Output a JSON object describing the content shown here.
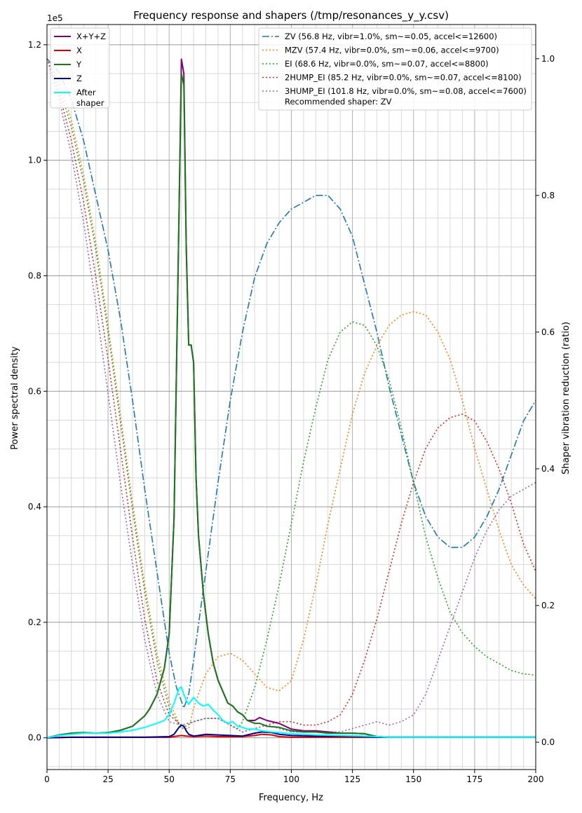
{
  "chart_data": {
    "type": "line",
    "title": "Frequency response and shapers (/tmp/resonances_y_y.csv)",
    "xlabel": "Frequency, Hz",
    "ylabel": "Power spectral density",
    "y2label": "Shaper vibration reduction (ratio)",
    "y_offset_label": "1e5",
    "xlim": [
      0,
      200
    ],
    "ylim": [
      -0.055,
      1.235
    ],
    "y2lim": [
      -0.04,
      1.05
    ],
    "x_ticks": [
      0,
      25,
      50,
      75,
      100,
      125,
      150,
      175,
      200
    ],
    "x_tick_labels": [
      "0",
      "25",
      "50",
      "75",
      "100",
      "125",
      "150",
      "175",
      "200"
    ],
    "y_ticks": [
      0.0,
      0.2,
      0.4,
      0.6,
      0.8,
      1.0,
      1.2
    ],
    "y_tick_labels": [
      "0.0",
      "0.2",
      "0.4",
      "0.6",
      "0.8",
      "1.0",
      "1.2"
    ],
    "y2_ticks": [
      0.0,
      0.2,
      0.4,
      0.6,
      0.8,
      1.0
    ],
    "y2_tick_labels": [
      "0.0",
      "0.2",
      "0.4",
      "0.6",
      "0.8",
      "1.0"
    ],
    "grid": "major and minor",
    "legend_left": "top-left",
    "legend_right": "top-right",
    "recommended_text": "Recommended shaper: ZV",
    "psd_series": [
      {
        "name": "X+Y+Z",
        "color": "#800080",
        "dash": "",
        "x": [
          0,
          5,
          10,
          15,
          20,
          25,
          30,
          35,
          40,
          42,
          45,
          48,
          50,
          52,
          54,
          55,
          56,
          57,
          58,
          59,
          60,
          61,
          62,
          64,
          66,
          68,
          70,
          72,
          74,
          76,
          78,
          80,
          82,
          85,
          87,
          90,
          95,
          100,
          105,
          110,
          115,
          120,
          125,
          130,
          132,
          135,
          140,
          150,
          160,
          170,
          180,
          190,
          200
        ],
        "y": [
          0,
          0.005,
          0.008,
          0.009,
          0.008,
          0.009,
          0.013,
          0.02,
          0.038,
          0.05,
          0.075,
          0.12,
          0.18,
          0.38,
          0.9,
          1.175,
          1.15,
          0.85,
          0.68,
          0.68,
          0.65,
          0.45,
          0.35,
          0.25,
          0.18,
          0.13,
          0.1,
          0.08,
          0.06,
          0.055,
          0.045,
          0.04,
          0.03,
          0.03,
          0.035,
          0.03,
          0.025,
          0.015,
          0.012,
          0.012,
          0.01,
          0.008,
          0.008,
          0.007,
          0.005,
          0.002,
          0.001,
          0.001,
          0.001,
          0.001,
          0.001,
          0.001,
          0.001
        ]
      },
      {
        "name": "X",
        "color": "#dd0000",
        "dash": "",
        "x": [
          0,
          10,
          20,
          30,
          40,
          50,
          55,
          57,
          60,
          65,
          70,
          75,
          80,
          85,
          88,
          92,
          95,
          100,
          120,
          140,
          160,
          180,
          200
        ],
        "y": [
          0,
          0.001,
          0.001,
          0.001,
          0.001,
          0.001,
          0.004,
          0.003,
          0.002,
          0.003,
          0.002,
          0.002,
          0.002,
          0.004,
          0.006,
          0.005,
          0.002,
          0.001,
          0.001,
          0.001,
          0.001,
          0.001,
          0.001
        ]
      },
      {
        "name": "Y",
        "color": "#1a7a1a",
        "dash": "",
        "x": [
          0,
          5,
          10,
          15,
          20,
          25,
          30,
          35,
          40,
          42,
          45,
          48,
          50,
          52,
          54,
          55,
          56,
          57,
          58,
          59,
          60,
          61,
          62,
          64,
          66,
          68,
          70,
          72,
          74,
          76,
          78,
          80,
          82,
          85,
          87,
          90,
          95,
          100,
          105,
          110,
          115,
          120,
          125,
          130,
          132,
          135,
          140,
          150,
          160,
          170,
          180,
          190,
          200
        ],
        "y": [
          0,
          0.005,
          0.008,
          0.009,
          0.008,
          0.009,
          0.013,
          0.02,
          0.038,
          0.05,
          0.075,
          0.12,
          0.18,
          0.38,
          0.9,
          1.15,
          1.13,
          0.85,
          0.68,
          0.68,
          0.65,
          0.45,
          0.35,
          0.25,
          0.18,
          0.13,
          0.1,
          0.08,
          0.06,
          0.055,
          0.045,
          0.04,
          0.03,
          0.025,
          0.025,
          0.02,
          0.018,
          0.012,
          0.01,
          0.01,
          0.008,
          0.008,
          0.008,
          0.007,
          0.005,
          0.002,
          0.001,
          0.001,
          0.001,
          0.001,
          0.001,
          0.001,
          0.001
        ]
      },
      {
        "name": "Z",
        "color": "#00008b",
        "dash": "",
        "x": [
          0,
          10,
          20,
          30,
          40,
          50,
          52,
          54,
          55,
          56,
          57,
          58,
          60,
          62,
          65,
          70,
          75,
          80,
          85,
          88,
          92,
          95,
          100,
          110,
          120,
          130,
          135,
          140,
          160,
          180,
          200
        ],
        "y": [
          0,
          0.001,
          0.001,
          0.001,
          0.001,
          0.002,
          0.006,
          0.018,
          0.022,
          0.02,
          0.012,
          0.006,
          0.003,
          0.004,
          0.006,
          0.005,
          0.004,
          0.003,
          0.008,
          0.01,
          0.009,
          0.006,
          0.004,
          0.003,
          0.003,
          0.002,
          0.001,
          0.001,
          0.001,
          0.001,
          0.001
        ]
      },
      {
        "name": "After\nshaper",
        "color": "#00ffff",
        "dash": "",
        "x": [
          0,
          5,
          10,
          15,
          20,
          25,
          30,
          35,
          40,
          45,
          48,
          50,
          52,
          54,
          55,
          56,
          57,
          58,
          60,
          62,
          64,
          66,
          68,
          70,
          72,
          74,
          76,
          78,
          80,
          82,
          85,
          88,
          92,
          95,
          100,
          110,
          120,
          130,
          135,
          140,
          160,
          180,
          200
        ],
        "y": [
          0,
          0.004,
          0.006,
          0.008,
          0.008,
          0.008,
          0.01,
          0.013,
          0.018,
          0.025,
          0.03,
          0.04,
          0.06,
          0.085,
          0.088,
          0.075,
          0.065,
          0.058,
          0.07,
          0.06,
          0.055,
          0.058,
          0.048,
          0.04,
          0.03,
          0.025,
          0.028,
          0.02,
          0.018,
          0.015,
          0.015,
          0.012,
          0.01,
          0.009,
          0.007,
          0.005,
          0.004,
          0.003,
          0.002,
          0.001,
          0.001,
          0.001,
          0.001
        ]
      }
    ],
    "shaper_series": [
      {
        "name": "ZV (56.8 Hz, vibr=1.0%, sm~=0.05, accel<=12600)",
        "color": "#1f77b4",
        "dash": "10,3,2,3",
        "x": [
          0,
          5,
          10,
          15,
          20,
          25,
          30,
          35,
          40,
          45,
          50,
          53,
          56,
          58,
          60,
          65,
          70,
          75,
          80,
          85,
          90,
          95,
          100,
          105,
          110,
          115,
          120,
          125,
          130,
          135,
          140,
          145,
          150,
          155,
          160,
          165,
          170,
          175,
          180,
          185,
          190,
          195,
          200
        ],
        "y": [
          1.0,
          0.98,
          0.94,
          0.88,
          0.8,
          0.72,
          0.62,
          0.5,
          0.37,
          0.25,
          0.13,
          0.08,
          0.05,
          0.07,
          0.12,
          0.25,
          0.38,
          0.5,
          0.6,
          0.68,
          0.73,
          0.76,
          0.78,
          0.79,
          0.8,
          0.8,
          0.78,
          0.74,
          0.67,
          0.6,
          0.52,
          0.45,
          0.38,
          0.33,
          0.3,
          0.285,
          0.285,
          0.3,
          0.33,
          0.37,
          0.42,
          0.47,
          0.5
        ]
      },
      {
        "name": "MZV (57.4 Hz, vibr=0.0%, sm~=0.06, accel<=9700)",
        "color": "#ff7f0e",
        "dash": "2,3",
        "x": [
          0,
          5,
          10,
          15,
          20,
          25,
          30,
          35,
          40,
          45,
          50,
          55,
          58,
          60,
          65,
          70,
          75,
          80,
          85,
          90,
          95,
          100,
          105,
          110,
          115,
          120,
          125,
          130,
          135,
          140,
          145,
          150,
          155,
          160,
          165,
          170,
          175,
          180,
          185,
          190,
          195,
          200
        ],
        "y": [
          1.0,
          0.97,
          0.91,
          0.83,
          0.73,
          0.61,
          0.48,
          0.35,
          0.23,
          0.13,
          0.06,
          0.02,
          0.02,
          0.05,
          0.1,
          0.125,
          0.13,
          0.12,
          0.1,
          0.08,
          0.075,
          0.09,
          0.15,
          0.23,
          0.32,
          0.4,
          0.48,
          0.54,
          0.58,
          0.61,
          0.625,
          0.63,
          0.625,
          0.6,
          0.56,
          0.5,
          0.43,
          0.37,
          0.31,
          0.26,
          0.23,
          0.21
        ]
      },
      {
        "name": "EI (68.6 Hz, vibr=0.0%, sm~=0.07, accel<=8800)",
        "color": "#2ca02c",
        "dash": "2,3",
        "x": [
          0,
          5,
          10,
          15,
          20,
          25,
          30,
          35,
          40,
          45,
          50,
          55,
          60,
          65,
          70,
          75,
          78,
          80,
          85,
          90,
          95,
          100,
          105,
          110,
          115,
          120,
          125,
          130,
          135,
          140,
          145,
          150,
          155,
          160,
          165,
          170,
          175,
          180,
          185,
          190,
          195,
          200
        ],
        "y": [
          1.0,
          0.96,
          0.9,
          0.82,
          0.72,
          0.6,
          0.47,
          0.34,
          0.22,
          0.12,
          0.05,
          0.02,
          0.03,
          0.035,
          0.035,
          0.025,
          0.02,
          0.03,
          0.08,
          0.15,
          0.23,
          0.32,
          0.41,
          0.49,
          0.56,
          0.6,
          0.615,
          0.61,
          0.58,
          0.53,
          0.46,
          0.38,
          0.3,
          0.24,
          0.19,
          0.16,
          0.14,
          0.125,
          0.115,
          0.105,
          0.1,
          0.098
        ]
      },
      {
        "name": "2HUMP_EI (85.2 Hz, vibr=0.0%, sm~=0.07, accel<=8100)",
        "color": "#d62728",
        "dash": "2,3",
        "x": [
          0,
          5,
          10,
          15,
          20,
          25,
          30,
          35,
          40,
          45,
          50,
          55,
          60,
          65,
          70,
          75,
          80,
          85,
          90,
          95,
          100,
          105,
          110,
          115,
          120,
          125,
          130,
          135,
          140,
          145,
          150,
          155,
          160,
          165,
          170,
          175,
          180,
          185,
          190,
          195,
          200
        ],
        "y": [
          1.0,
          0.95,
          0.88,
          0.79,
          0.68,
          0.56,
          0.43,
          0.3,
          0.18,
          0.09,
          0.04,
          0.025,
          0.03,
          0.035,
          0.035,
          0.025,
          0.015,
          0.02,
          0.025,
          0.03,
          0.03,
          0.025,
          0.025,
          0.03,
          0.04,
          0.07,
          0.12,
          0.18,
          0.25,
          0.32,
          0.38,
          0.43,
          0.46,
          0.475,
          0.48,
          0.47,
          0.44,
          0.4,
          0.35,
          0.29,
          0.25
        ]
      },
      {
        "name": "3HUMP_EI (101.8 Hz, vibr=0.0%, sm~=0.08, accel<=7600)",
        "color": "#9467bd",
        "dash": "2,3",
        "x": [
          0,
          5,
          10,
          15,
          20,
          25,
          30,
          35,
          40,
          45,
          50,
          55,
          60,
          65,
          70,
          75,
          80,
          85,
          90,
          95,
          100,
          105,
          110,
          115,
          120,
          125,
          130,
          135,
          140,
          145,
          150,
          155,
          160,
          165,
          170,
          175,
          180,
          185,
          190,
          195,
          200
        ],
        "y": [
          1.0,
          0.94,
          0.86,
          0.76,
          0.64,
          0.51,
          0.38,
          0.26,
          0.15,
          0.07,
          0.03,
          0.025,
          0.03,
          0.035,
          0.035,
          0.025,
          0.015,
          0.02,
          0.025,
          0.02,
          0.015,
          0.015,
          0.015,
          0.015,
          0.015,
          0.02,
          0.025,
          0.03,
          0.025,
          0.03,
          0.04,
          0.07,
          0.12,
          0.17,
          0.22,
          0.27,
          0.31,
          0.34,
          0.36,
          0.37,
          0.38
        ]
      }
    ]
  }
}
